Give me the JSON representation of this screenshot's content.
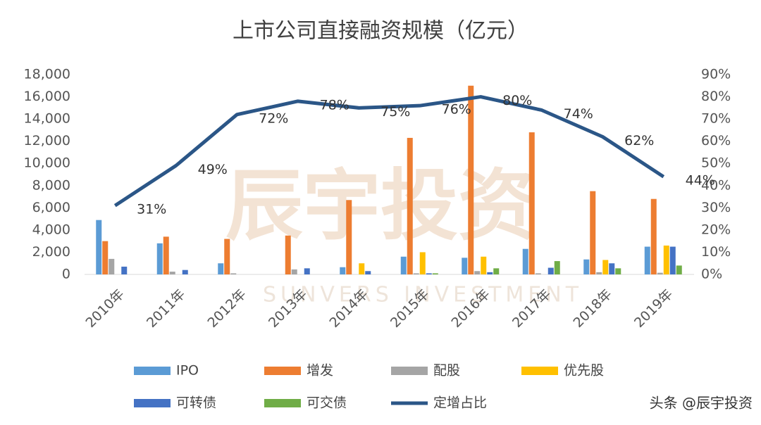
{
  "chart_data": {
    "type": "bar",
    "title": "上市公司直接融资规模（亿元）",
    "categories": [
      "2010年",
      "2011年",
      "2012年",
      "2013年",
      "2014年",
      "2015年",
      "2016年",
      "2017年",
      "2018年",
      "2019年"
    ],
    "series": [
      {
        "name": "IPO",
        "color": "#5b9bd5",
        "values": [
          4900,
          2800,
          1000,
          0,
          650,
          1600,
          1500,
          2300,
          1350,
          2500
        ]
      },
      {
        "name": "增发",
        "color": "#ed7d31",
        "values": [
          3000,
          3400,
          3200,
          3500,
          6700,
          12300,
          17000,
          12800,
          7500,
          6800
        ]
      },
      {
        "name": "配股",
        "color": "#a5a5a5",
        "values": [
          1400,
          250,
          100,
          450,
          0,
          100,
          300,
          100,
          200,
          150
        ]
      },
      {
        "name": "优先股",
        "color": "#ffc000",
        "values": [
          0,
          0,
          0,
          0,
          1000,
          2000,
          1600,
          0,
          1300,
          2600
        ]
      },
      {
        "name": "可转债",
        "color": "#4472c4",
        "values": [
          700,
          400,
          0,
          550,
          300,
          100,
          200,
          600,
          1000,
          2500
        ]
      },
      {
        "name": "可交债",
        "color": "#70ad47",
        "values": [
          0,
          0,
          0,
          0,
          0,
          100,
          550,
          1200,
          550,
          800
        ]
      },
      {
        "name": "定增占比",
        "color": "#2b5687",
        "type": "line",
        "axis": "y2",
        "values": [
          31,
          49,
          72,
          78,
          75,
          76,
          80,
          74,
          62,
          44
        ],
        "value_labels": [
          "31%",
          "49%",
          "72%",
          "78%",
          "75%",
          "76%",
          "80%",
          "74%",
          "62%",
          "44%"
        ]
      }
    ],
    "ylim": [
      0,
      18000
    ],
    "yticks": [
      0,
      {
        "value": 2000,
        "label": "2,000"
      },
      {
        "value": 4000,
        "label": "4,000"
      },
      {
        "value": 6000,
        "label": "6,000"
      },
      {
        "value": 8000,
        "label": "8,000"
      },
      {
        "value": 10000,
        "label": "10,000"
      },
      {
        "value": 12000,
        "label": "12,000"
      },
      {
        "value": 14000,
        "label": "14,000"
      },
      {
        "value": 16000,
        "label": "16,000"
      },
      {
        "value": 18000,
        "label": "18,000"
      }
    ],
    "y2lim": [
      0,
      90
    ],
    "y2ticks": [
      {
        "value": 0,
        "label": "0%"
      },
      {
        "value": 10,
        "label": "10%"
      },
      {
        "value": 20,
        "label": "20%"
      },
      {
        "value": 30,
        "label": "30%"
      },
      {
        "value": 40,
        "label": "40%"
      },
      {
        "value": 50,
        "label": "50%"
      },
      {
        "value": 60,
        "label": "60%"
      },
      {
        "value": 70,
        "label": "70%"
      },
      {
        "value": 80,
        "label": "80%"
      },
      {
        "value": 90,
        "label": "90%"
      }
    ],
    "grid": false,
    "legend": "bottom",
    "watermark": "辰宇投资",
    "watermark_sub": "SUNVERS INVESTMENT",
    "credit": "头条 @辰宇投资"
  }
}
